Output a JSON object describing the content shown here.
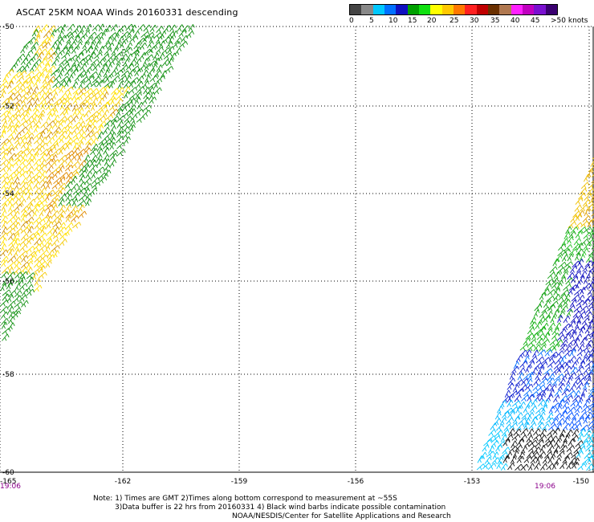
{
  "title": "ASCAT 25KM NOAA Winds 20160331 descending",
  "colorbar": {
    "colors": [
      "#444444",
      "#888888",
      "#00c8ff",
      "#0070ff",
      "#1010c0",
      "#00a000",
      "#10e010",
      "#ffff00",
      "#ffc800",
      "#ff7800",
      "#ff2020",
      "#c00000",
      "#6a3000",
      "#b07850",
      "#ff20ff",
      "#c000c0",
      "#7a10d0",
      "#3a0070"
    ],
    "labels": [
      "0",
      "5",
      "10",
      "15",
      "20",
      "25",
      "30",
      "35",
      "40",
      "45",
      ">50 knots"
    ]
  },
  "latitude_labels": [
    "-50",
    "-52",
    "-54",
    "-56",
    "-58",
    "-60"
  ],
  "longitude_labels": [
    "-165",
    "-162",
    "-159",
    "-156",
    "-153",
    "-150"
  ],
  "time_labels": {
    "left": "19:06",
    "right": "19:06"
  },
  "notes": {
    "line1": "Note: 1) Times are GMT 2)Times along bottom correspond to measurement at ~55S",
    "line2": "3)Data buffer is 22 hrs from 20160331 4) Black wind barbs indicate possible contamination",
    "line3": "NOAA/NESDIS/Center for Satellite Applications and Research"
  }
}
